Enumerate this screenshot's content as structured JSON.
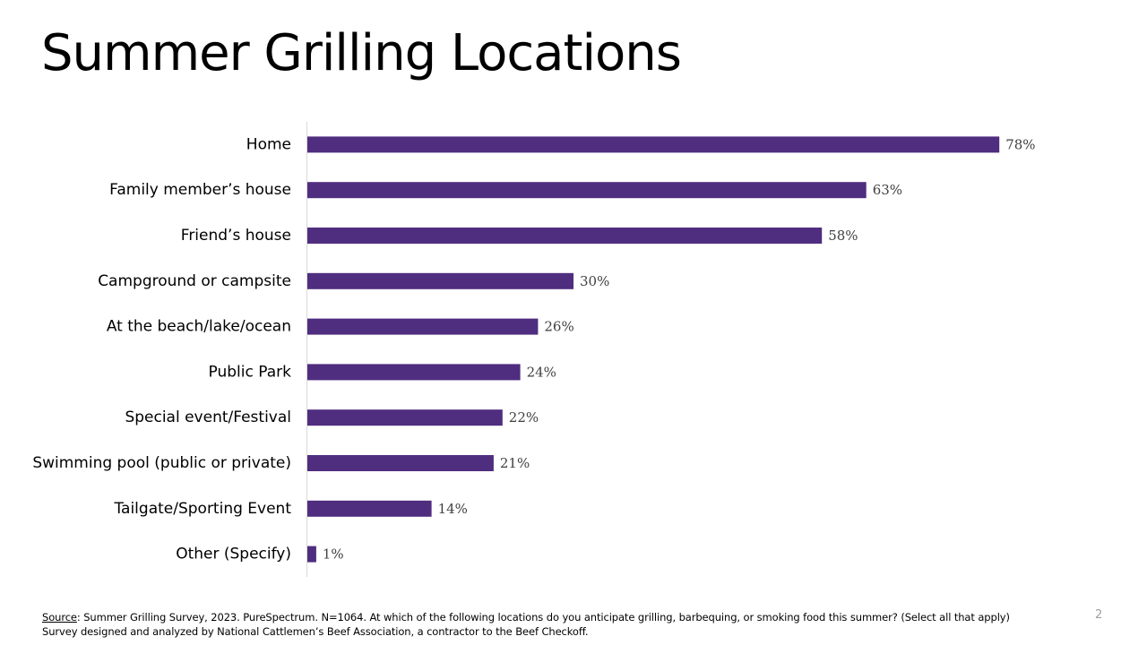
{
  "chart_data": {
    "type": "bar",
    "orientation": "horizontal",
    "title": "Summer Grilling Locations",
    "categories": [
      "Home",
      "Family member’s house",
      "Friend’s house",
      "Campground or campsite",
      "At the beach/lake/ocean",
      "Public Park",
      "Special event/Festival",
      "Swimming pool (public or private)",
      "Tailgate/Sporting Event",
      "Other (Specify)"
    ],
    "values": [
      78,
      63,
      58,
      30,
      26,
      24,
      22,
      21,
      14,
      1
    ],
    "value_labels": [
      "78%",
      "63%",
      "58%",
      "30%",
      "26%",
      "24%",
      "22%",
      "21%",
      "14%",
      "1%"
    ],
    "xlim": [
      0,
      80
    ],
    "grid": false,
    "legend": "none",
    "bar_color": "#4f2d7f"
  },
  "source": {
    "label": "Source",
    "line1": ": Summer Grilling Survey, 2023. PureSpectrum. N=1064. At which of the following locations do you anticipate grilling, barbequing, or smoking food this summer? (Select all that apply)",
    "line2": "Survey designed and analyzed by National Cattlemen’s Beef Association, a contractor to the Beef Checkoff."
  },
  "page_number": "2"
}
